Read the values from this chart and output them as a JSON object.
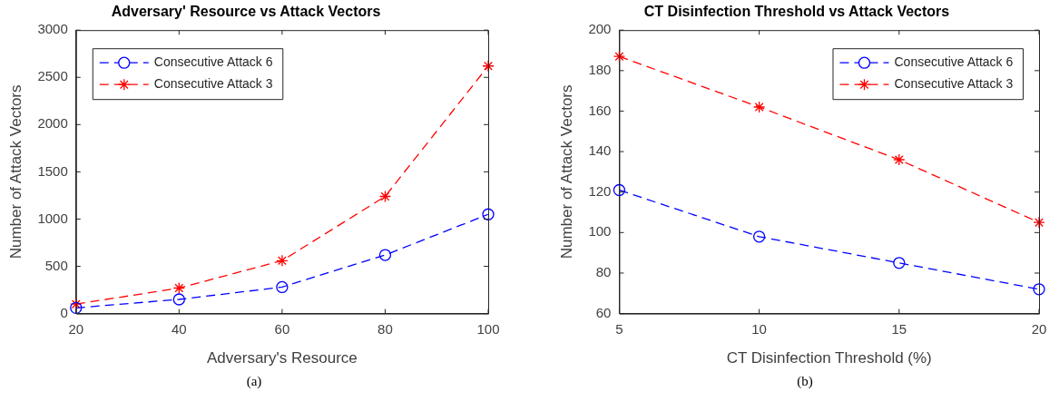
{
  "chart_data": [
    {
      "type": "line",
      "title": "Adversary' Resource vs Attack Vectors",
      "xlabel": "Adversary's Resource",
      "ylabel": "Number of Attack Vectors",
      "x": [
        20,
        40,
        60,
        80,
        100
      ],
      "series": [
        {
          "name": "Consecutive Attack 6",
          "color": "#0000ff",
          "marker": "circle",
          "values": [
            60,
            150,
            280,
            620,
            1050
          ]
        },
        {
          "name": "Consecutive Attack 3",
          "color": "#ff0000",
          "marker": "cross",
          "values": [
            100,
            270,
            560,
            1240,
            2620
          ]
        }
      ],
      "xlim": [
        20,
        100
      ],
      "xticks": [
        20,
        40,
        60,
        80,
        100
      ],
      "ylim": [
        0,
        3000
      ],
      "yticks": [
        0,
        500,
        1000,
        1500,
        2000,
        2500,
        3000
      ],
      "grid": false,
      "legend": "top left",
      "line_style": "dashed",
      "annotations": [
        "(a)"
      ]
    },
    {
      "type": "line",
      "title": "CT Disinfection Threshold vs Attack Vectors",
      "xlabel": "CT Disinfection Threshold (%)",
      "ylabel": "Number of Attack Vectors",
      "x": [
        5,
        10,
        15,
        20
      ],
      "series": [
        {
          "name": "Consecutive Attack 6",
          "color": "#0000ff",
          "marker": "circle",
          "values": [
            121,
            98,
            85,
            72
          ]
        },
        {
          "name": "Consecutive Attack 3",
          "color": "#ff0000",
          "marker": "cross",
          "values": [
            187,
            162,
            136,
            105
          ]
        }
      ],
      "xlim": [
        5,
        20
      ],
      "xticks": [
        5,
        10,
        15,
        20
      ],
      "ylim": [
        60,
        200
      ],
      "yticks": [
        60,
        80,
        100,
        120,
        140,
        160,
        180,
        200
      ],
      "grid": false,
      "legend": "top right",
      "line_style": "dashed",
      "annotations": [
        "(b)"
      ]
    }
  ]
}
